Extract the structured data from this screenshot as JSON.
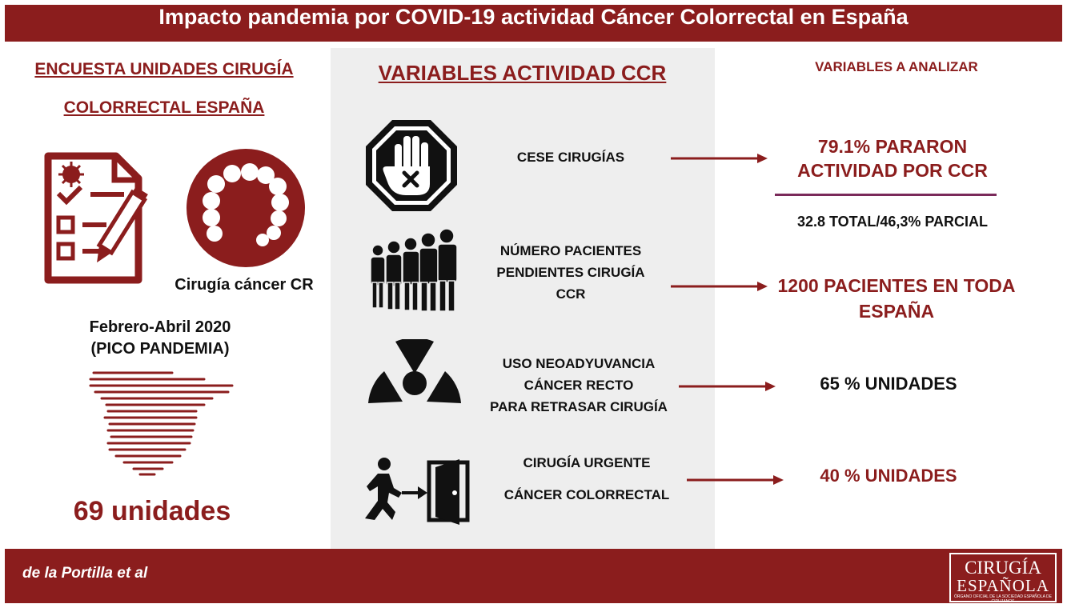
{
  "title": "Impacto pandemia por COVID-19 actividad Cáncer Colorrectal en España",
  "left": {
    "heading_line1": "ENCUESTA UNIDADES CIRUGÍA",
    "heading_line2": "COLORRECTAL ESPAÑA",
    "colon_caption": "Cirugía cáncer CR",
    "period_line1": "Febrero-Abril 2020",
    "period_line2": "(PICO PANDEMIA)",
    "units": "69 unidades"
  },
  "middle": {
    "heading": "VARIABLES ACTIVIDAD CCR",
    "items": [
      {
        "lines": [
          "CESE CIRUGÍAS"
        ],
        "icon": "stop-hand-icon"
      },
      {
        "lines": [
          "NÚMERO PACIENTES",
          "PENDIENTES CIRUGÍA",
          "CCR"
        ],
        "icon": "people-queue-icon"
      },
      {
        "lines": [
          "USO NEOADYUVANCIA",
          "CÁNCER RECTO",
          "PARA RETRASAR CIRUGÍA"
        ],
        "icon": "radiation-icon"
      },
      {
        "lines": [
          "CIRUGÍA  URGENTE",
          "CÁNCER COLORRECTAL"
        ],
        "icon": "emergency-exit-icon"
      }
    ]
  },
  "right": {
    "heading": "VARIABLES A ANALIZAR",
    "result1_line1": "79.1% PARARON",
    "result1_line2": "ACTIVIDAD POR CCR",
    "result1_detail": "32.8 TOTAL/46,3% PARCIAL",
    "result2_line1": "1200 PACIENTES EN TODA",
    "result2_line2": "ESPAÑA",
    "result3": "65 % UNIDADES",
    "result4": "40 % UNIDADES"
  },
  "footer": {
    "author": "de la Portilla et al",
    "logo_line1": "CIRUGÍA",
    "logo_line2": "ESPAÑOLA",
    "logo_line3": "ÓRGANO OFICIAL DE LA SOCIEDAD ESPAÑOLA DE CIRUJANOS"
  },
  "colors": {
    "brand": "#8b1d1d",
    "panel": "#eeeeee",
    "accent_line": "#7a2a5a"
  }
}
